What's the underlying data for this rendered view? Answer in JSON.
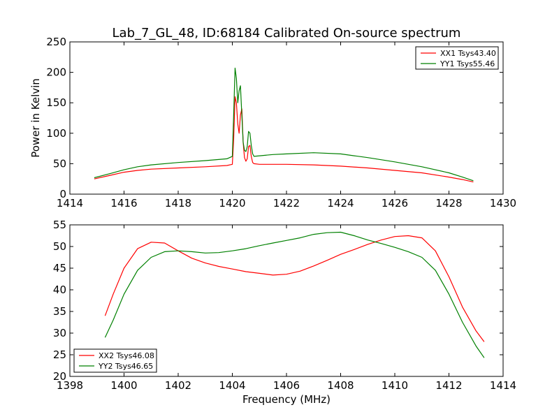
{
  "title": "Lab_7_GL_48, ID:68184 Calibrated On-source spectrum",
  "xlabel": "Frequency (MHz)",
  "chart_data": [
    {
      "type": "line",
      "ylabel": "Power in Kelvin",
      "xlim": [
        1414,
        1430
      ],
      "ylim": [
        0,
        250
      ],
      "xticks": [
        1414,
        1416,
        1418,
        1420,
        1422,
        1424,
        1426,
        1428,
        1430
      ],
      "yticks": [
        0,
        50,
        100,
        150,
        200,
        250
      ],
      "legend_position": "top-right",
      "series": [
        {
          "name": "XX1 Tsys43.40",
          "color": "#ff0000",
          "x": [
            1414.9,
            1415.5,
            1416.0,
            1416.5,
            1417.0,
            1418.0,
            1419.0,
            1419.8,
            1420.0,
            1420.05,
            1420.1,
            1420.15,
            1420.2,
            1420.25,
            1420.3,
            1420.35,
            1420.4,
            1420.45,
            1420.5,
            1420.55,
            1420.6,
            1420.65,
            1420.7,
            1420.75,
            1420.8,
            1421.0,
            1421.5,
            1422.0,
            1423.0,
            1424.0,
            1425.0,
            1426.0,
            1427.0,
            1428.0,
            1428.5,
            1428.9
          ],
          "y": [
            25,
            31,
            36,
            39,
            41,
            43,
            45,
            47,
            49,
            90,
            160,
            150,
            115,
            100,
            130,
            140,
            85,
            60,
            54,
            58,
            78,
            80,
            62,
            52,
            50,
            49,
            49,
            49,
            48,
            46,
            43,
            39,
            35,
            28,
            24,
            20
          ]
        },
        {
          "name": "YY1 Tsys55.46",
          "color": "#008000",
          "x": [
            1414.9,
            1415.5,
            1416.0,
            1416.5,
            1417.0,
            1418.0,
            1419.0,
            1419.8,
            1420.0,
            1420.05,
            1420.1,
            1420.15,
            1420.2,
            1420.25,
            1420.3,
            1420.35,
            1420.4,
            1420.45,
            1420.5,
            1420.55,
            1420.6,
            1420.65,
            1420.7,
            1420.75,
            1420.8,
            1421.0,
            1421.5,
            1422.0,
            1423.0,
            1424.0,
            1425.0,
            1426.0,
            1427.0,
            1428.0,
            1428.5,
            1428.9
          ],
          "y": [
            27,
            34,
            40,
            45,
            48,
            52,
            55,
            58,
            62,
            130,
            207,
            190,
            150,
            170,
            178,
            130,
            85,
            72,
            70,
            78,
            103,
            100,
            80,
            66,
            62,
            63,
            65,
            66,
            68,
            66,
            60,
            53,
            45,
            35,
            28,
            22
          ]
        }
      ]
    },
    {
      "type": "line",
      "ylabel": "",
      "xlim": [
        1398,
        1414
      ],
      "ylim": [
        20,
        55
      ],
      "xticks": [
        1398,
        1400,
        1402,
        1404,
        1406,
        1408,
        1410,
        1412,
        1414
      ],
      "yticks": [
        20,
        25,
        30,
        35,
        40,
        45,
        50,
        55
      ],
      "legend_position": "bottom-left",
      "series": [
        {
          "name": "XX2 Tsys46.08",
          "color": "#ff0000",
          "x": [
            1399.3,
            1399.6,
            1400.0,
            1400.5,
            1401.0,
            1401.5,
            1402.0,
            1402.5,
            1403.0,
            1403.5,
            1404.0,
            1404.5,
            1405.0,
            1405.5,
            1406.0,
            1406.5,
            1407.0,
            1407.5,
            1408.0,
            1408.5,
            1409.0,
            1409.5,
            1410.0,
            1410.5,
            1411.0,
            1411.5,
            1412.0,
            1412.5,
            1413.0,
            1413.3
          ],
          "y": [
            34,
            39,
            45,
            49.5,
            51,
            50.8,
            49,
            47.3,
            46.2,
            45.4,
            44.8,
            44.2,
            43.8,
            43.4,
            43.6,
            44.3,
            45.5,
            46.8,
            48.2,
            49.3,
            50.5,
            51.5,
            52.3,
            52.5,
            52,
            49,
            43,
            36,
            30.5,
            28
          ]
        },
        {
          "name": "YY2 Tsys46.65",
          "color": "#008000",
          "x": [
            1399.3,
            1399.6,
            1400.0,
            1400.5,
            1401.0,
            1401.5,
            1402.0,
            1402.5,
            1403.0,
            1403.5,
            1404.0,
            1404.5,
            1405.0,
            1405.5,
            1406.0,
            1406.5,
            1407.0,
            1407.5,
            1408.0,
            1408.5,
            1409.0,
            1409.5,
            1410.0,
            1410.5,
            1411.0,
            1411.5,
            1412.0,
            1412.5,
            1413.0,
            1413.3
          ],
          "y": [
            29,
            33,
            39,
            44.5,
            47.5,
            48.8,
            49,
            48.8,
            48.5,
            48.6,
            49,
            49.5,
            50.2,
            50.8,
            51.4,
            52,
            52.8,
            53.2,
            53.3,
            52.5,
            51.5,
            50.7,
            49.8,
            48.8,
            47.5,
            44.5,
            39,
            32.5,
            27,
            24.3
          ]
        }
      ]
    }
  ]
}
